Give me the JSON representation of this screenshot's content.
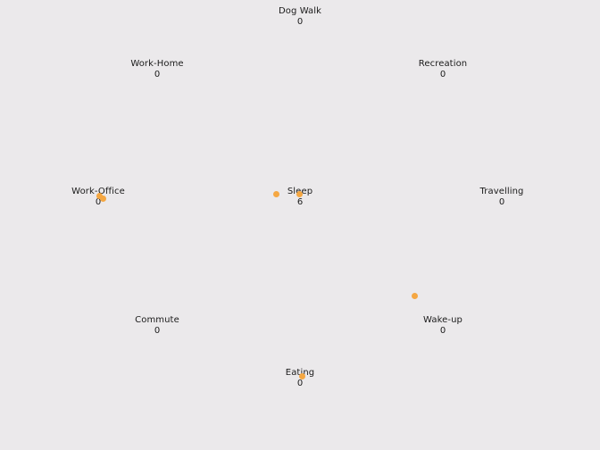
{
  "accent_color": "#f5a742",
  "activities": [
    {
      "id": "dog-walk",
      "label": "Dog Walk",
      "count": "0"
    },
    {
      "id": "work-home",
      "label": "Work-Home",
      "count": "0"
    },
    {
      "id": "recreation",
      "label": "Recreation",
      "count": "0"
    },
    {
      "id": "work-office",
      "label": "Work-Office",
      "count": "0"
    },
    {
      "id": "sleep",
      "label": "Sleep",
      "count": "6"
    },
    {
      "id": "travelling",
      "label": "Travelling",
      "count": "0"
    },
    {
      "id": "commute",
      "label": "Commute",
      "count": "0"
    },
    {
      "id": "wake-up",
      "label": "Wake-up",
      "count": "0"
    },
    {
      "id": "eating",
      "label": "Eating",
      "count": "0"
    }
  ]
}
